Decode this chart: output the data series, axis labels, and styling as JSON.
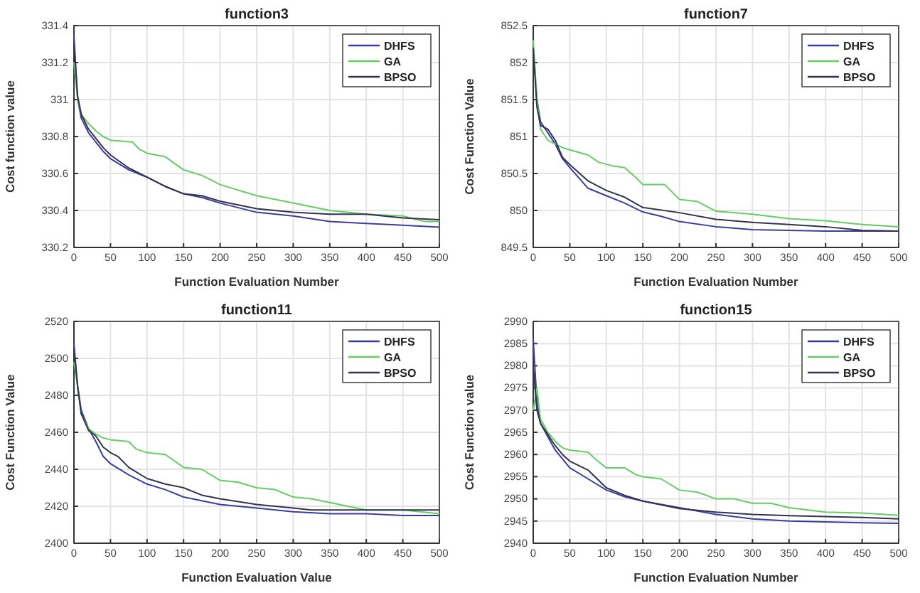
{
  "chart_data": [
    {
      "type": "line",
      "title": "function3",
      "xlabel": "Function Evaluation Number",
      "ylabel": "Cost function value",
      "xlim": [
        0,
        500
      ],
      "xticks": [
        0,
        50,
        100,
        150,
        200,
        250,
        300,
        350,
        400,
        450,
        500
      ],
      "ylim": [
        330.2,
        331.4
      ],
      "yticks": [
        330.2,
        330.4,
        330.6,
        330.8,
        331,
        331.2,
        331.4
      ],
      "grid": true,
      "legend": "top right",
      "line_style": "solid",
      "series": [
        {
          "name": "DHFS",
          "color": "#3c3ca0",
          "x": [
            0,
            5,
            10,
            20,
            30,
            40,
            50,
            75,
            100,
            125,
            150,
            175,
            200,
            250,
            300,
            350,
            400,
            450,
            500
          ],
          "values": [
            331.35,
            331.0,
            330.9,
            330.82,
            330.77,
            330.72,
            330.68,
            330.62,
            330.58,
            330.53,
            330.49,
            330.47,
            330.44,
            330.39,
            330.37,
            330.34,
            330.33,
            330.32,
            330.31
          ]
        },
        {
          "name": "GA",
          "color": "#66cc66",
          "x": [
            0,
            5,
            10,
            20,
            30,
            40,
            50,
            80,
            90,
            100,
            125,
            150,
            175,
            200,
            250,
            300,
            350,
            400,
            450,
            480,
            500
          ],
          "values": [
            331.2,
            331.0,
            330.92,
            330.87,
            330.83,
            330.8,
            330.78,
            330.77,
            330.73,
            330.71,
            330.69,
            330.62,
            330.59,
            330.54,
            330.48,
            330.44,
            330.4,
            330.38,
            330.37,
            330.34,
            330.34
          ]
        },
        {
          "name": "BPSO",
          "color": "#33334d",
          "x": [
            0,
            5,
            10,
            20,
            30,
            40,
            50,
            75,
            100,
            125,
            150,
            175,
            200,
            225,
            250,
            300,
            350,
            400,
            450,
            500
          ],
          "values": [
            331.3,
            331.02,
            330.92,
            330.84,
            330.79,
            330.74,
            330.7,
            330.63,
            330.58,
            330.53,
            330.49,
            330.48,
            330.45,
            330.43,
            330.41,
            330.39,
            330.38,
            330.38,
            330.36,
            330.35
          ]
        }
      ]
    },
    {
      "type": "line",
      "title": "function7",
      "xlabel": "Function Evaluation Number",
      "ylabel": "Cost Function Value",
      "xlim": [
        0,
        500
      ],
      "xticks": [
        0,
        50,
        100,
        150,
        200,
        250,
        300,
        350,
        400,
        450,
        500
      ],
      "ylim": [
        849.5,
        852.5
      ],
      "yticks": [
        849.5,
        850,
        850.5,
        851,
        851.5,
        852,
        852.5
      ],
      "grid": true,
      "legend": "top right",
      "line_style": "solid",
      "series": [
        {
          "name": "DHFS",
          "color": "#3c3ca0",
          "x": [
            0,
            5,
            10,
            20,
            30,
            40,
            50,
            75,
            100,
            125,
            150,
            175,
            200,
            250,
            300,
            350,
            400,
            450,
            500
          ],
          "values": [
            852.2,
            851.5,
            851.2,
            851.05,
            850.9,
            850.7,
            850.58,
            850.3,
            850.2,
            850.1,
            849.98,
            849.92,
            849.85,
            849.78,
            849.74,
            849.73,
            849.72,
            849.72,
            849.72
          ]
        },
        {
          "name": "GA",
          "color": "#66cc66",
          "x": [
            0,
            5,
            10,
            20,
            30,
            40,
            50,
            75,
            90,
            110,
            125,
            140,
            150,
            180,
            200,
            225,
            250,
            300,
            350,
            400,
            450,
            500
          ],
          "values": [
            852.3,
            851.5,
            851.1,
            850.95,
            850.9,
            850.85,
            850.82,
            850.75,
            850.65,
            850.6,
            850.58,
            850.45,
            850.35,
            850.35,
            850.15,
            850.12,
            849.99,
            849.95,
            849.89,
            849.86,
            849.81,
            849.78
          ]
        },
        {
          "name": "BPSO",
          "color": "#33334d",
          "x": [
            0,
            5,
            10,
            20,
            30,
            40,
            50,
            75,
            100,
            125,
            150,
            200,
            250,
            300,
            350,
            400,
            450,
            500
          ],
          "values": [
            852.2,
            851.4,
            851.15,
            851.1,
            850.95,
            850.72,
            850.62,
            850.4,
            850.27,
            850.18,
            850.04,
            849.97,
            849.88,
            849.84,
            849.81,
            849.78,
            849.73,
            849.72
          ]
        }
      ]
    },
    {
      "type": "line",
      "title": "function11",
      "xlabel": "Function Evaluation Value",
      "ylabel": "Cost Function Value",
      "xlim": [
        0,
        500
      ],
      "xticks": [
        0,
        50,
        100,
        150,
        200,
        250,
        300,
        350,
        400,
        450,
        500
      ],
      "ylim": [
        2400,
        2520
      ],
      "yticks": [
        2400,
        2420,
        2440,
        2460,
        2480,
        2500,
        2520
      ],
      "grid": true,
      "legend": "top right",
      "line_style": "solid",
      "series": [
        {
          "name": "DHFS",
          "color": "#3c3ca0",
          "x": [
            0,
            5,
            10,
            20,
            30,
            40,
            50,
            75,
            100,
            125,
            150,
            200,
            250,
            300,
            350,
            400,
            450,
            500
          ],
          "values": [
            2508,
            2485,
            2472,
            2462,
            2455,
            2447,
            2443,
            2437,
            2432,
            2429,
            2425,
            2421,
            2419,
            2417,
            2416,
            2416,
            2415,
            2415
          ]
        },
        {
          "name": "GA",
          "color": "#66cc66",
          "x": [
            0,
            5,
            10,
            20,
            30,
            40,
            50,
            75,
            85,
            100,
            125,
            150,
            175,
            200,
            225,
            250,
            275,
            300,
            325,
            350,
            375,
            400,
            450,
            500
          ],
          "values": [
            2498,
            2485,
            2470,
            2462,
            2459,
            2457,
            2456,
            2455,
            2451,
            2449,
            2448,
            2441,
            2440,
            2434,
            2433,
            2430,
            2429,
            2425,
            2424,
            2422,
            2420,
            2418,
            2418,
            2416
          ]
        },
        {
          "name": "BPSO",
          "color": "#33334d",
          "x": [
            0,
            5,
            10,
            20,
            30,
            40,
            50,
            60,
            75,
            100,
            125,
            150,
            175,
            200,
            250,
            300,
            325,
            400,
            500
          ],
          "values": [
            2505,
            2485,
            2470,
            2461,
            2458,
            2452,
            2449,
            2447,
            2441,
            2435,
            2432,
            2430,
            2426,
            2424,
            2421,
            2419,
            2418,
            2418,
            2418
          ]
        }
      ]
    },
    {
      "type": "line",
      "title": "function15",
      "xlabel": "Function Evaluation Number",
      "ylabel": "Cost Function value",
      "xlim": [
        0,
        500
      ],
      "xticks": [
        0,
        50,
        100,
        150,
        200,
        250,
        300,
        350,
        400,
        450,
        500
      ],
      "ylim": [
        2940,
        2990
      ],
      "yticks": [
        2940,
        2945,
        2950,
        2955,
        2960,
        2965,
        2970,
        2975,
        2980,
        2985,
        2990
      ],
      "grid": true,
      "legend": "top right",
      "line_style": "solid",
      "series": [
        {
          "name": "DHFS",
          "color": "#3c3ca0",
          "x": [
            0,
            5,
            10,
            20,
            30,
            40,
            50,
            75,
            100,
            125,
            150,
            200,
            250,
            300,
            350,
            400,
            450,
            500
          ],
          "values": [
            2986,
            2972,
            2967,
            2964,
            2961,
            2959,
            2957,
            2954.5,
            2952,
            2950.5,
            2949.5,
            2948,
            2946.5,
            2945.5,
            2945,
            2944.8,
            2944.6,
            2944.5
          ]
        },
        {
          "name": "GA",
          "color": "#66cc66",
          "x": [
            0,
            5,
            10,
            20,
            30,
            40,
            50,
            75,
            85,
            100,
            125,
            140,
            150,
            175,
            200,
            225,
            250,
            275,
            300,
            325,
            350,
            400,
            450,
            500
          ],
          "values": [
            2970,
            2975,
            2968,
            2965,
            2963,
            2961.5,
            2961,
            2960.5,
            2959,
            2957,
            2957,
            2955.5,
            2955,
            2954.5,
            2952,
            2951.5,
            2950,
            2950,
            2949,
            2949,
            2948,
            2947,
            2946.8,
            2946.3
          ]
        },
        {
          "name": "BPSO",
          "color": "#33334d",
          "x": [
            0,
            5,
            10,
            20,
            30,
            40,
            50,
            75,
            100,
            125,
            150,
            200,
            250,
            300,
            350,
            400,
            450,
            500
          ],
          "values": [
            2980,
            2970,
            2967,
            2964.5,
            2962,
            2960,
            2958.5,
            2956.5,
            2952.5,
            2950.8,
            2949.5,
            2947.8,
            2947,
            2946.5,
            2946.2,
            2946,
            2945.8,
            2945.5
          ]
        }
      ]
    }
  ]
}
